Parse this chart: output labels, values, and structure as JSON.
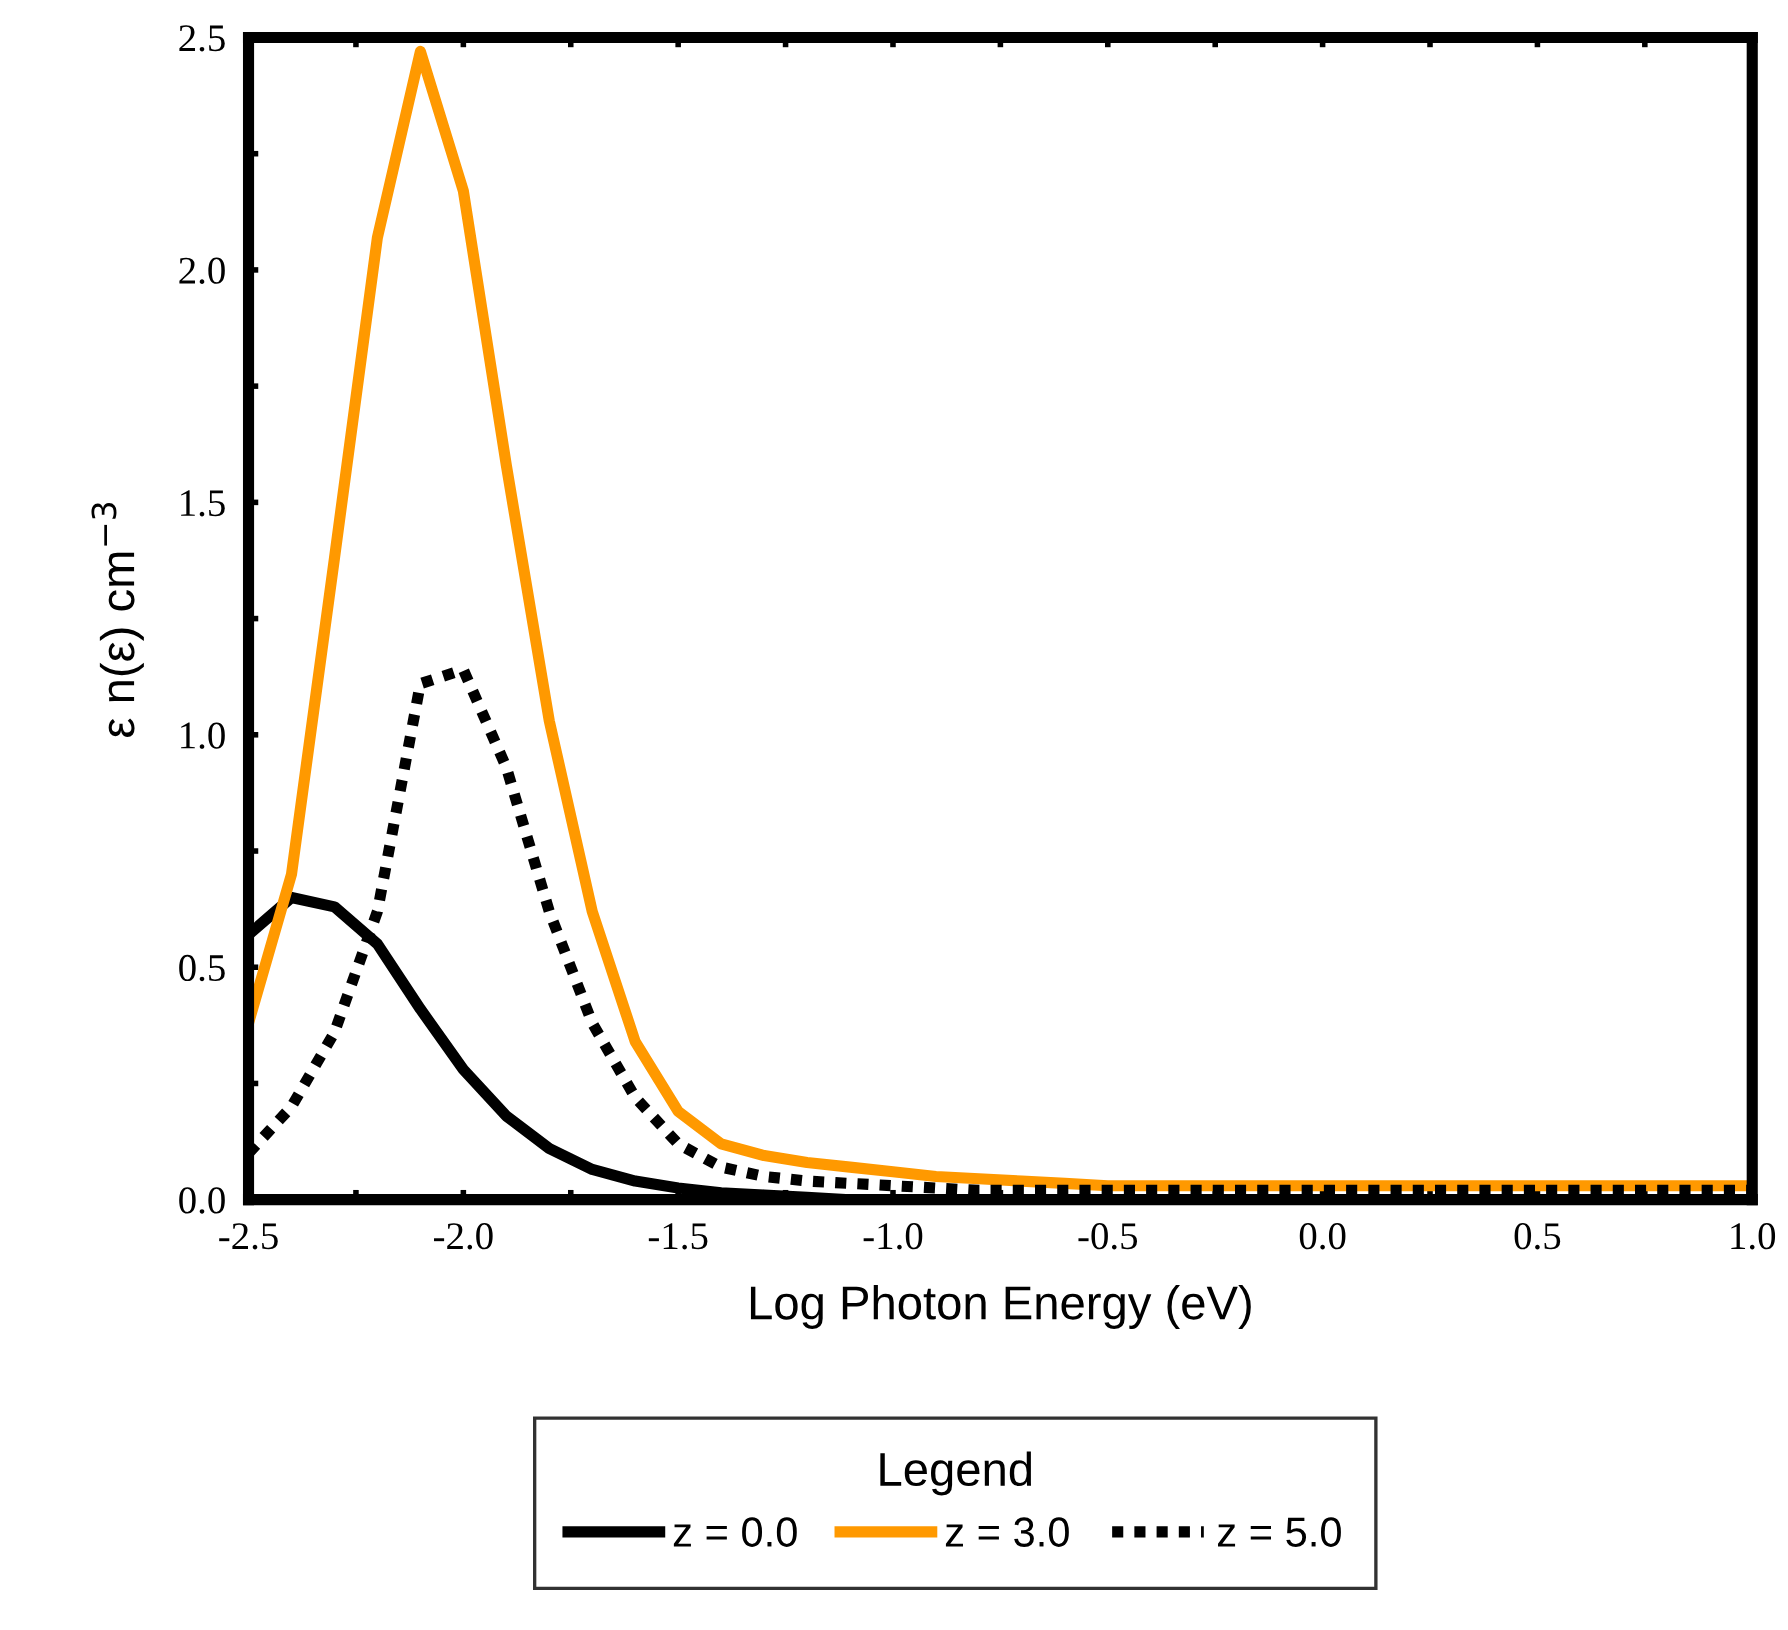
{
  "chart_data": {
    "type": "line",
    "xlabel": "Log Photon Energy (eV)",
    "ylabel": "ε n(ε) cm$^{−3}$",
    "legend_title": "Legend",
    "legend": "bottom",
    "grid": false,
    "x": [
      -2.5,
      -2.4,
      -2.3,
      -2.2,
      -2.1,
      -2.0,
      -1.9,
      -1.8,
      -1.7,
      -1.6,
      -1.5,
      -1.4,
      -1.3,
      -1.2,
      -1.1,
      -1.0,
      -0.9,
      -0.8,
      -0.7,
      -0.6,
      -0.5,
      -0.4,
      -0.3,
      -0.2,
      -0.1,
      0.0,
      0.1,
      0.2,
      0.3,
      0.4,
      0.5,
      0.6,
      0.7,
      0.8,
      0.9,
      1.0
    ],
    "series": [
      {
        "name": "z = 0.0",
        "color": "#000000",
        "line_style": "solid",
        "values": [
          0.57,
          0.65,
          0.63,
          0.55,
          0.41,
          0.28,
          0.18,
          0.11,
          0.065,
          0.04,
          0.025,
          0.015,
          0.01,
          0.005,
          0,
          0,
          0,
          0,
          0,
          0,
          0,
          0,
          0,
          0,
          0,
          0,
          0,
          0,
          0,
          0,
          0,
          0,
          0,
          0,
          0,
          0
        ]
      },
      {
        "name": "z = 3.0",
        "color": "#ff9900",
        "line_style": "solid",
        "values": [
          0.38,
          0.7,
          1.38,
          2.07,
          2.47,
          2.17,
          1.58,
          1.03,
          0.62,
          0.34,
          0.19,
          0.12,
          0.095,
          0.08,
          0.07,
          0.06,
          0.05,
          0.045,
          0.04,
          0.035,
          0.03,
          0.03,
          0.03,
          0.03,
          0.03,
          0.03,
          0.03,
          0.03,
          0.03,
          0.03,
          0.03,
          0.03,
          0.03,
          0.03,
          0.03,
          0.03
        ]
      },
      {
        "name": "z = 5.0",
        "color": "#000000",
        "line_style": "dotted",
        "values": [
          0.1,
          0.2,
          0.36,
          0.62,
          1.11,
          1.14,
          0.93,
          0.62,
          0.38,
          0.22,
          0.12,
          0.07,
          0.05,
          0.04,
          0.035,
          0.03,
          0.025,
          0.02,
          0.02,
          0.02,
          0.02,
          0.02,
          0.02,
          0.02,
          0.02,
          0.02,
          0.02,
          0.02,
          0.02,
          0.02,
          0.02,
          0.02,
          0.02,
          0.02,
          0.02,
          0.02
        ]
      }
    ],
    "xlim": [
      -2.5,
      1.0
    ],
    "xticks": [
      {
        "value": -2.5,
        "label": "-2.5"
      },
      {
        "value": -2.25,
        "label": null
      },
      {
        "value": -2.0,
        "label": "-2.0"
      },
      {
        "value": -1.75,
        "label": null
      },
      {
        "value": -1.5,
        "label": "-1.5"
      },
      {
        "value": -1.25,
        "label": null
      },
      {
        "value": -1.0,
        "label": "-1.0"
      },
      {
        "value": -0.75,
        "label": null
      },
      {
        "value": -0.5,
        "label": "-0.5"
      },
      {
        "value": -0.25,
        "label": null
      },
      {
        "value": 0.0,
        "label": "0.0"
      },
      {
        "value": 0.25,
        "label": null
      },
      {
        "value": 0.5,
        "label": "0.5"
      },
      {
        "value": 0.75,
        "label": null
      },
      {
        "value": 1.0,
        "label": "1.0"
      }
    ],
    "ylim": [
      0,
      2.5
    ],
    "yticks": [
      {
        "value": 0,
        "label": "0.0"
      },
      {
        "value": 0.25,
        "label": null
      },
      {
        "value": 0.5,
        "label": "0.5"
      },
      {
        "value": 0.75,
        "label": null
      },
      {
        "value": 1.0,
        "label": "1.0"
      },
      {
        "value": 1.25,
        "label": null
      },
      {
        "value": 1.5,
        "label": "1.5"
      },
      {
        "value": 1.75,
        "label": null
      },
      {
        "value": 2.0,
        "label": "2.0"
      },
      {
        "value": 2.25,
        "label": null
      },
      {
        "value": 2.5,
        "label": "2.5"
      }
    ]
  }
}
